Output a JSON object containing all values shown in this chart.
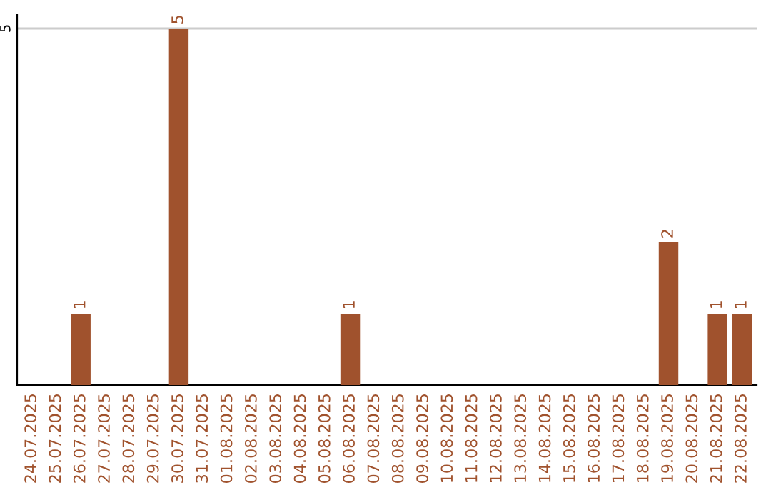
{
  "chart_data": {
    "type": "bar",
    "categories": [
      "24.07.2025",
      "25.07.2025",
      "26.07.2025",
      "27.07.2025",
      "28.07.2025",
      "29.07.2025",
      "30.07.2025",
      "31.07.2025",
      "01.08.2025",
      "02.08.2025",
      "03.08.2025",
      "04.08.2025",
      "05.08.2025",
      "06.08.2025",
      "07.08.2025",
      "08.08.2025",
      "09.08.2025",
      "10.08.2025",
      "11.08.2025",
      "12.08.2025",
      "13.08.2025",
      "14.08.2025",
      "15.08.2025",
      "16.08.2025",
      "17.08.2025",
      "18.08.2025",
      "19.08.2025",
      "20.08.2025",
      "21.08.2025",
      "22.08.2025"
    ],
    "values": [
      0,
      0,
      1,
      0,
      0,
      0,
      5,
      0,
      0,
      0,
      0,
      0,
      0,
      1,
      0,
      0,
      0,
      0,
      0,
      0,
      0,
      0,
      0,
      0,
      0,
      0,
      2,
      0,
      1,
      1
    ],
    "value_labels": [
      null,
      null,
      "1",
      null,
      null,
      null,
      "5",
      null,
      null,
      null,
      null,
      null,
      null,
      "1",
      null,
      null,
      null,
      null,
      null,
      null,
      null,
      null,
      null,
      null,
      null,
      null,
      "2",
      null,
      "1",
      "1"
    ],
    "color": "#a0522d",
    "ylim": [
      0,
      5.2
    ],
    "yticks": [
      5
    ],
    "grid": "y"
  }
}
